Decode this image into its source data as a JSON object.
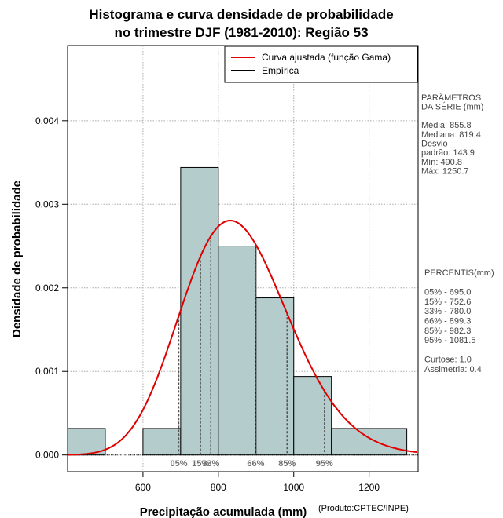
{
  "chart_data": {
    "type": "bar",
    "title_lines": [
      "Histograma e curva densidade de probabilidade",
      "no trimestre DJF (1981-2010): Região 53"
    ],
    "xlabel": "Precipitação acumulada (mm)",
    "ylabel": "Densidade de probabilidade",
    "product_note": "(Produto:CPTEC/INPE)",
    "xlim": [
      400,
      1330
    ],
    "ylim": [
      -0.0002,
      0.0049
    ],
    "x_ticks": [
      600,
      800,
      1000,
      1200
    ],
    "x_tick_labels": [
      "600",
      "800",
      "1000",
      "1200"
    ],
    "y_ticks": [
      0.0,
      0.001,
      0.002,
      0.003,
      0.004
    ],
    "y_tick_labels": [
      "0.000",
      "0.001",
      "0.002",
      "0.003",
      "0.004"
    ],
    "grid": true,
    "histogram": [
      {
        "x0": 400,
        "x1": 500,
        "density": 0.000317
      },
      {
        "x0": 500,
        "x1": 600,
        "density": 0.0
      },
      {
        "x0": 600,
        "x1": 700,
        "density": 0.000317
      },
      {
        "x0": 700,
        "x1": 800,
        "density": 0.00344
      },
      {
        "x0": 800,
        "x1": 900,
        "density": 0.0025
      },
      {
        "x0": 900,
        "x1": 1000,
        "density": 0.00188
      },
      {
        "x0": 1000,
        "x1": 1100,
        "density": 0.00094
      },
      {
        "x0": 1100,
        "x1": 1300,
        "density": 0.000317
      }
    ],
    "histogram_fill": "#b4cccc",
    "gamma_curve": {
      "name": "Curva ajustada (função Gama)",
      "mean": 855.8,
      "sd": 143.9,
      "color": "#e00000"
    },
    "empirical": {
      "name": "Empírica",
      "color": "#000000"
    },
    "legend": [
      "Curva ajustada (função Gama)",
      "Empírica"
    ],
    "legend_position": "top-right",
    "percentiles": [
      {
        "label": "05%",
        "value": 695.0
      },
      {
        "label": "15%",
        "value": 752.6
      },
      {
        "label": "33%",
        "value": 780.0
      },
      {
        "label": "66%",
        "value": 899.3
      },
      {
        "label": "85%",
        "value": 982.3
      },
      {
        "label": "95%",
        "value": 1081.5
      }
    ],
    "side_params": [
      "PARÂMETROS",
      " DA SÉRIE (mm)",
      "",
      "Média:  855.8",
      "Mediana:  819.4",
      "Desvio",
      "padrão:  143.9",
      "Mín:  490.8",
      "Máx:  1250.7"
    ],
    "side_percentis": [
      " PERCENTIS(mm)",
      "",
      "05% -  695.0",
      "15% -  752.6",
      "33% -  780.0",
      "66% -  899.3",
      "85% -  982.3",
      "95% -  1081.5",
      "",
      "Curtose:  1.0",
      "Assimetria:  0.4"
    ]
  }
}
